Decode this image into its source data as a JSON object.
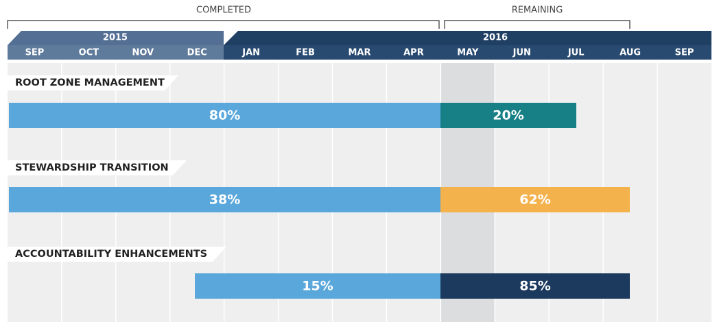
{
  "header": {
    "completed": "COMPLETED",
    "remaining": "REMAINING",
    "years": [
      "2015",
      "2016"
    ],
    "months": [
      "SEP",
      "OCT",
      "NOV",
      "DEC",
      "JAN",
      "FEB",
      "MAR",
      "APR",
      "MAY",
      "JUN",
      "JUL",
      "AUG",
      "SEP"
    ]
  },
  "tasks": [
    {
      "label": "ROOT ZONE MANAGEMENT",
      "completed": "80%",
      "remaining": "20%"
    },
    {
      "label": "STEWARDSHIP TRANSITION",
      "completed": "38%",
      "remaining": "62%"
    },
    {
      "label": "ACCOUNTABILITY ENHANCEMENTS",
      "completed": "15%",
      "remaining": "85%"
    }
  ]
}
